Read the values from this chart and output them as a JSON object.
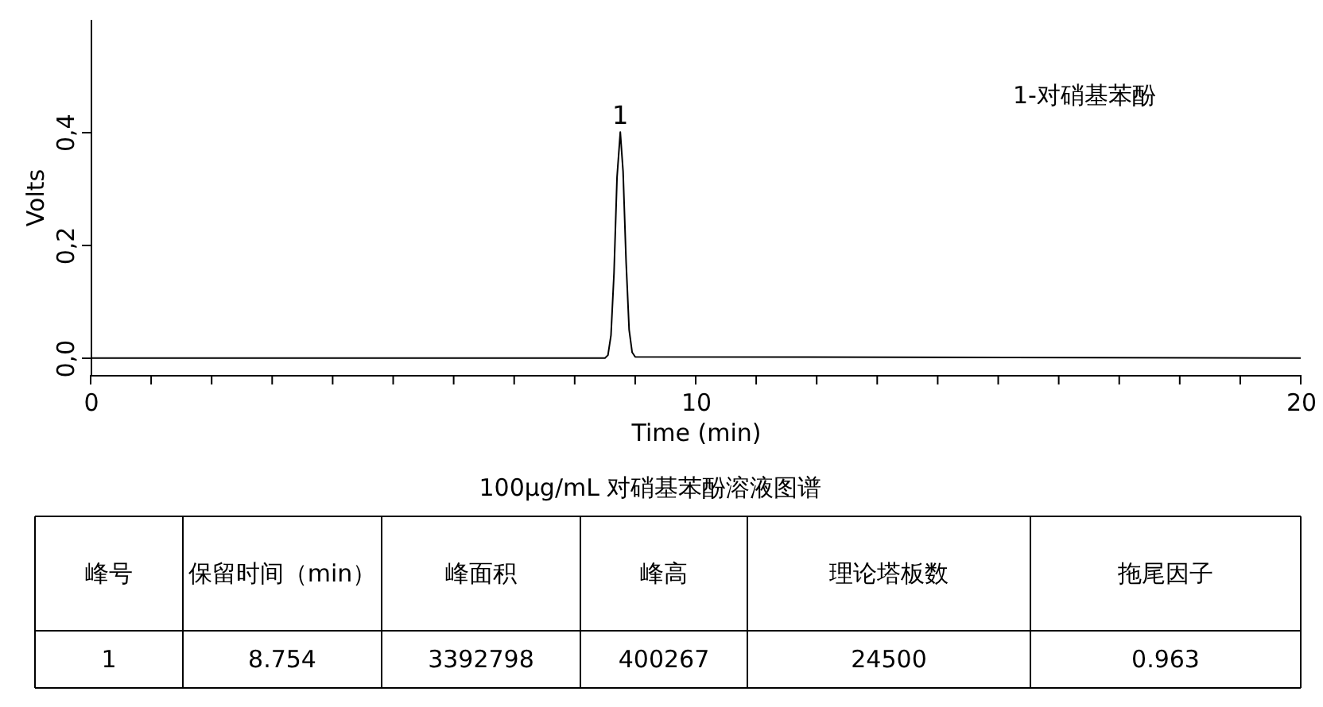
{
  "chart_data": {
    "type": "line",
    "xlabel": "Time (min)",
    "ylabel": "Volts",
    "xlim": [
      0,
      20
    ],
    "ylim": [
      -0.03,
      0.6
    ],
    "xticks": [
      0,
      {
        "value": 1,
        "label": null
      },
      {
        "value": 2,
        "label": null
      },
      {
        "value": 3,
        "label": null
      },
      {
        "value": 4,
        "label": null
      },
      {
        "value": 5,
        "label": null
      },
      {
        "value": 6,
        "label": null
      },
      {
        "value": 7,
        "label": null
      },
      {
        "value": 8,
        "label": null
      },
      {
        "value": 9,
        "label": null
      },
      10,
      {
        "value": 11,
        "label": null
      },
      {
        "value": 12,
        "label": null
      },
      {
        "value": 13,
        "label": null
      },
      {
        "value": 14,
        "label": null
      },
      {
        "value": 15,
        "label": null
      },
      {
        "value": 16,
        "label": null
      },
      {
        "value": 17,
        "label": null
      },
      {
        "value": 18,
        "label": null
      },
      {
        "value": 19,
        "label": null
      },
      20
    ],
    "yticks": [
      {
        "value": 0,
        "label": "0,0"
      },
      {
        "value": 0.2,
        "label": "0,2"
      },
      {
        "value": 0.4,
        "label": "0,4"
      }
    ],
    "grid": false,
    "marker": "none",
    "line_style": "solid",
    "series": [
      {
        "color": "#000000",
        "x": [
          0,
          8.5,
          8.55,
          8.6,
          8.65,
          8.7,
          8.754,
          8.8,
          8.85,
          8.9,
          8.95,
          9.0,
          20
        ],
        "values": [
          0,
          0,
          0.005,
          0.04,
          0.15,
          0.32,
          0.4,
          0.33,
          0.17,
          0.05,
          0.01,
          0.002,
          0
        ]
      }
    ],
    "annotations": [
      {
        "text": "1",
        "x": 8.754,
        "y": 0.4
      },
      "1-对硝基苯酚",
      "100μg/mL 对硝基苯酚溶液图谱",
      "峰号",
      "保留时间（min）",
      "峰面积",
      "峰高",
      "理论塔板数",
      "拖尾因子",
      "1",
      "8.754",
      "3392798",
      "400267",
      "24500",
      "0.963"
    ]
  }
}
